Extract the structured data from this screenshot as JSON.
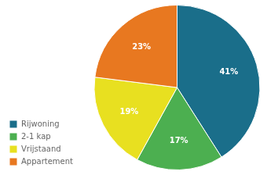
{
  "chart_data": {
    "type": "pie",
    "categories": [
      "Rijwoning",
      "2-1 kap",
      "Vrijstaand",
      "Appartement"
    ],
    "values": [
      41,
      17,
      19,
      23
    ],
    "value_labels": [
      "41%",
      "17%",
      "19%",
      "23%"
    ],
    "colors": [
      "#1a6e8a",
      "#4caf50",
      "#e8e020",
      "#e87820"
    ],
    "data_labels": true,
    "legend": "lower left"
  }
}
